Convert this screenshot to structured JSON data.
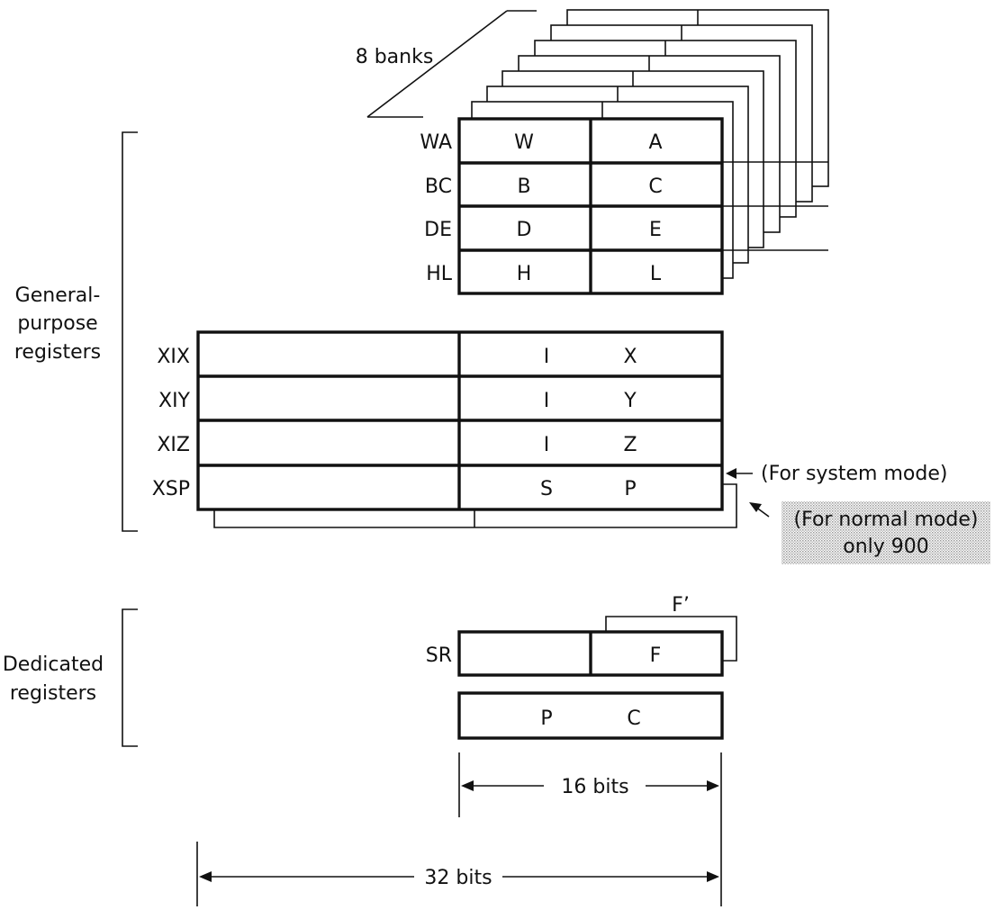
{
  "diagram": {
    "banks_label": "8 banks",
    "groups": {
      "general": [
        "General-",
        "purpose",
        "registers"
      ],
      "dedicated": [
        "Dedicated",
        "registers"
      ]
    },
    "bank_registers": [
      {
        "name": "WA",
        "high": "W",
        "low": "A"
      },
      {
        "name": "BC",
        "high": "B",
        "low": "C"
      },
      {
        "name": "DE",
        "high": "D",
        "low": "E"
      },
      {
        "name": "HL",
        "high": "H",
        "low": "L"
      }
    ],
    "index_registers": [
      {
        "name": "XIX",
        "l1": "I",
        "l2": "X"
      },
      {
        "name": "XIY",
        "l1": "I",
        "l2": "Y"
      },
      {
        "name": "XIZ",
        "l1": "I",
        "l2": "Z"
      },
      {
        "name": "XSP",
        "l1": "S",
        "l2": "P"
      }
    ],
    "system_mode_note": "(For system mode)",
    "normal_mode_note": [
      "(For normal mode)",
      "only 900"
    ],
    "sr": {
      "name": "SR",
      "low": "F",
      "alt": "F’"
    },
    "pc": {
      "l1": "P",
      "l2": "C"
    },
    "width16": "16 bits",
    "width32": "32 bits"
  }
}
